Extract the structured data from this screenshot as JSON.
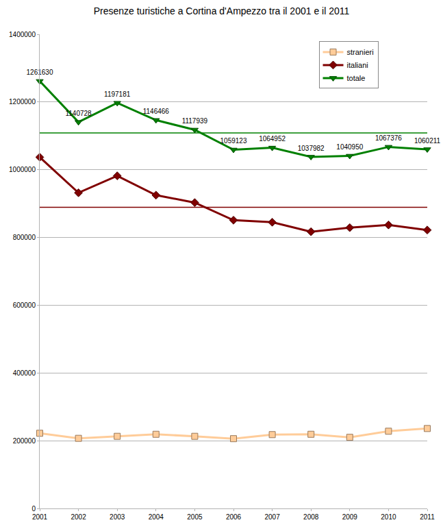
{
  "chart_data": {
    "type": "line",
    "title": "Presenze turistiche a Cortina d'Ampezzo tra il 2001 e il 2011",
    "x": [
      2001,
      2002,
      2003,
      2004,
      2005,
      2006,
      2007,
      2008,
      2009,
      2010,
      2011
    ],
    "xlim": [
      2001,
      2011
    ],
    "xticks": [
      2001,
      2002,
      2003,
      2004,
      2005,
      2006,
      2007,
      2008,
      2009,
      2010,
      2011
    ],
    "ylim": [
      0,
      1400000
    ],
    "yticks": [
      0,
      200000,
      400000,
      600000,
      800000,
      1000000,
      1200000,
      1400000
    ],
    "grid": true,
    "legend": "top right",
    "series": [
      {
        "name": "stranieri",
        "color": "#ffcc99",
        "marker": "square",
        "values": [
          222000,
          207000,
          213000,
          219000,
          213000,
          206000,
          218000,
          219000,
          210000,
          228000,
          236000
        ]
      },
      {
        "name": "italiani",
        "color": "#800000",
        "marker": "diamond",
        "values": [
          1037000,
          932000,
          982000,
          925000,
          903000,
          851000,
          845000,
          817000,
          829000,
          837000,
          822000
        ],
        "average": 889000
      },
      {
        "name": "totale",
        "color": "#008000",
        "marker": "triangle-down",
        "data_labels": true,
        "values": [
          1261630,
          1140728,
          1197181,
          1146466,
          1117939,
          1059123,
          1064952,
          1037982,
          1040950,
          1067376,
          1060211
        ],
        "average": 1108594
      }
    ]
  }
}
